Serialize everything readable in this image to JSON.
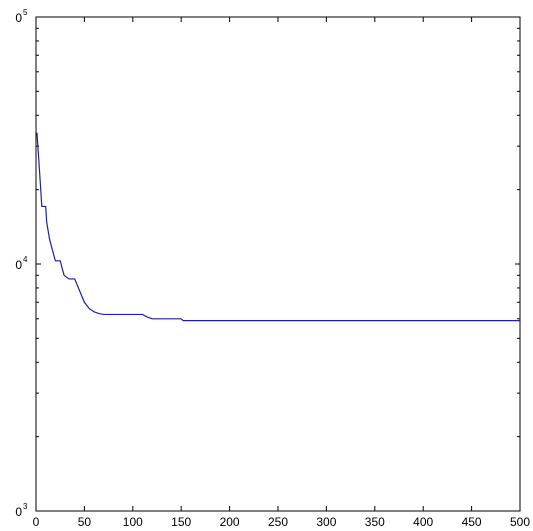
{
  "chart_data": {
    "type": "line",
    "title": "",
    "xlabel": "",
    "ylabel": "",
    "xlim": [
      0,
      500
    ],
    "ylim": [
      1000,
      100000
    ],
    "yscale": "log",
    "grid": false,
    "x_ticks": [
      0,
      50,
      100,
      150,
      200,
      250,
      300,
      350,
      400,
      450,
      500
    ],
    "x_tick_labels": [
      "0",
      "50",
      "100",
      "150",
      "200",
      "250",
      "300",
      "350",
      "400",
      "450",
      "500"
    ],
    "y_ticks": [
      {
        "value": 1000,
        "base": "0",
        "exponent": "3"
      },
      {
        "value": 10000,
        "base": "0",
        "exponent": "4"
      },
      {
        "value": 100000,
        "base": "0",
        "exponent": "5"
      }
    ],
    "series": [
      {
        "color": "#1f1fa0",
        "x": [
          1,
          3,
          5,
          6,
          10,
          11,
          14,
          20,
          25,
          29,
          34,
          40,
          45,
          50,
          55,
          60,
          65,
          70,
          80,
          90,
          100,
          110,
          115,
          120,
          130,
          150,
          152,
          200,
          300,
          400,
          500
        ],
        "y": [
          34000,
          26000,
          19700,
          17100,
          17100,
          14800,
          12600,
          10300,
          10300,
          9000,
          8700,
          8700,
          7800,
          7000,
          6600,
          6400,
          6300,
          6250,
          6250,
          6250,
          6250,
          6250,
          6100,
          6000,
          6000,
          6000,
          5900,
          5900,
          5900,
          5900,
          5900
        ]
      }
    ]
  }
}
